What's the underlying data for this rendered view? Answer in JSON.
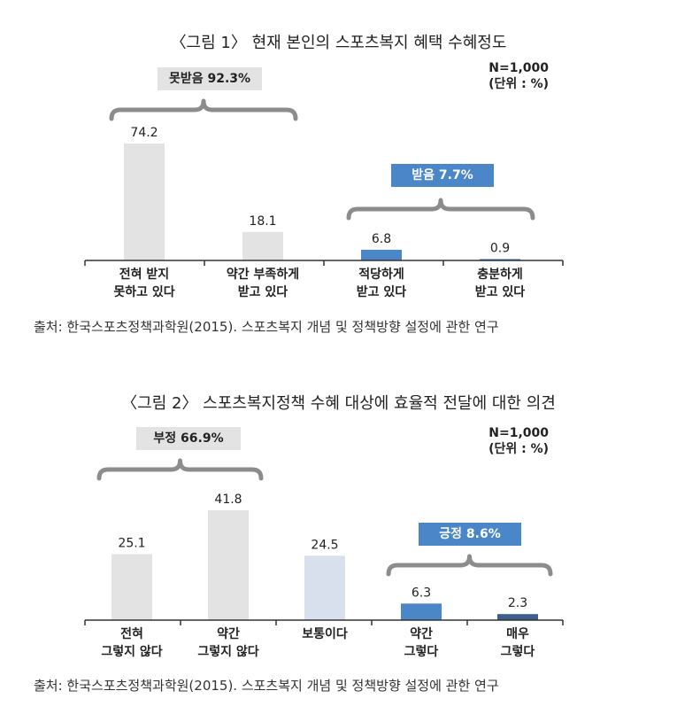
{
  "colors": {
    "gray": "#e3e3e3",
    "light_blue": "#d7e0ec",
    "blue": "#4a86c8",
    "dark_blue": "#3c5f8c",
    "brace": "#8c8c8c"
  },
  "chart_data": [
    {
      "type": "bar",
      "title": "〈그림 1〉 현재 본인의 스포츠복지 혜택 수혜정도",
      "n_label": "N=1,000",
      "unit_label": "(단위 : %)",
      "categories": [
        [
          "전혀 받지",
          "못하고 있다"
        ],
        [
          "약간 부족하게",
          "받고 있다"
        ],
        [
          "적당하게",
          "받고 있다"
        ],
        [
          "충분하게",
          "받고 있다"
        ]
      ],
      "values": [
        74.2,
        18.1,
        6.8,
        0.9
      ],
      "value_labels": [
        "74.2",
        "18.1",
        "6.8",
        "0.9"
      ],
      "bar_colors": [
        "#e3e3e3",
        "#e3e3e3",
        "#4a86c8",
        "#4a86c8"
      ],
      "groups": [
        {
          "label": "못받음 92.3%",
          "style": "neg",
          "from": 0,
          "to": 1
        },
        {
          "label": "받음 7.7%",
          "style": "pos",
          "from": 2,
          "to": 3
        }
      ],
      "ylim": [
        0,
        74.2
      ],
      "source": "출처: 한국스포츠정책과학원(2015). 스포츠복지 개념 및 정책방향 설정에 관한 연구"
    },
    {
      "type": "bar",
      "title": "〈그림 2〉 스포츠복지정책 수혜 대상에 효율적 전달에 대한 의견",
      "n_label": "N=1,000",
      "unit_label": "(단위 : %)",
      "categories": [
        [
          "전혀",
          "그렇지 않다"
        ],
        [
          "약간",
          "그렇지 않다"
        ],
        [
          "보통이다"
        ],
        [
          "약간",
          "그렇다"
        ],
        [
          "매우",
          "그렇다"
        ]
      ],
      "values": [
        25.1,
        41.8,
        24.5,
        6.3,
        2.3
      ],
      "value_labels": [
        "25.1",
        "41.8",
        "24.5",
        "6.3",
        "2.3"
      ],
      "bar_colors": [
        "#e3e3e3",
        "#e3e3e3",
        "#d7e0ec",
        "#4a86c8",
        "#3c5f8c"
      ],
      "groups": [
        {
          "label": "부정 66.9%",
          "style": "neg",
          "from": 0,
          "to": 1
        },
        {
          "label": "긍정 8.6%",
          "style": "pos",
          "from": 3,
          "to": 4
        }
      ],
      "ylim": [
        0,
        41.8
      ],
      "source": "출처: 한국스포츠정책과학원(2015). 스포츠복지 개념 및 정책방향 설정에 관한 연구"
    }
  ]
}
